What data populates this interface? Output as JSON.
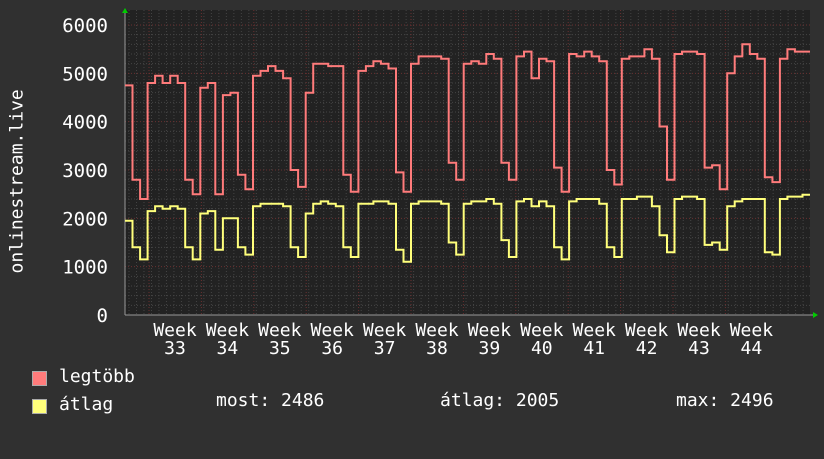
{
  "chart_data": {
    "type": "line",
    "ylabel": "onlinestream.live",
    "ylim": [
      0,
      6000
    ],
    "yticks": [
      0,
      1000,
      2000,
      3000,
      4000,
      5000,
      6000
    ],
    "xtick_labels": [
      "Week 33",
      "Week 34",
      "Week 35",
      "Week 36",
      "Week 37",
      "Week 38",
      "Week 39",
      "Week 40",
      "Week 41",
      "Week 42",
      "Week 43",
      "Week 44"
    ],
    "grid": true,
    "legend_position": "bottom-left",
    "series": [
      {
        "name": "legtöbb",
        "color": "#ff7b7b",
        "values": [
          4750,
          2800,
          2400,
          4800,
          4950,
          4800,
          4950,
          4800,
          2800,
          2500,
          4700,
          4800,
          2500,
          4550,
          4600,
          2900,
          2600,
          4950,
          5050,
          5150,
          5050,
          4900,
          3000,
          2650,
          4600,
          5200,
          5200,
          5150,
          5150,
          2900,
          2550,
          5050,
          5150,
          5250,
          5200,
          5100,
          2950,
          2550,
          5200,
          5350,
          5350,
          5350,
          5300,
          3150,
          2800,
          5200,
          5250,
          5200,
          5400,
          5300,
          3150,
          2800,
          5350,
          5450,
          4900,
          5300,
          5250,
          3050,
          2550,
          5400,
          5350,
          5450,
          5350,
          5250,
          3000,
          2700,
          5300,
          5350,
          5350,
          5500,
          5300,
          3900,
          2800,
          5400,
          5450,
          5450,
          5400,
          3050,
          3100,
          2600,
          5000,
          5350,
          5600,
          5400,
          5300,
          2850,
          2750,
          5300,
          5500,
          5450,
          5450
        ]
      },
      {
        "name": "átlag",
        "color": "#ffff7b",
        "values": [
          1950,
          1400,
          1150,
          2150,
          2250,
          2200,
          2250,
          2200,
          1400,
          1150,
          2100,
          2150,
          1350,
          2000,
          2000,
          1400,
          1250,
          2250,
          2300,
          2300,
          2300,
          2250,
          1400,
          1200,
          2100,
          2300,
          2350,
          2300,
          2250,
          1400,
          1200,
          2300,
          2300,
          2350,
          2350,
          2300,
          1350,
          1100,
          2300,
          2350,
          2350,
          2350,
          2300,
          1500,
          1250,
          2300,
          2350,
          2350,
          2400,
          2300,
          1550,
          1200,
          2350,
          2400,
          2250,
          2350,
          2250,
          1400,
          1150,
          2350,
          2400,
          2400,
          2400,
          2300,
          1400,
          1200,
          2400,
          2400,
          2450,
          2450,
          2250,
          1650,
          1300,
          2400,
          2450,
          2450,
          2400,
          1450,
          1500,
          1350,
          2250,
          2350,
          2400,
          2400,
          2400,
          1300,
          1250,
          2400,
          2450,
          2450,
          2486
        ]
      }
    ]
  },
  "legend": {
    "max_label": "legtöbb",
    "avg_label": "átlag",
    "now_text": "most: 2486",
    "avg_text": "átlag: 2005",
    "max_text": "max: 2496"
  },
  "colors": {
    "background": "#303030",
    "plot": "#222222",
    "grid": "#444444",
    "major_grid": "#6a3030"
  }
}
